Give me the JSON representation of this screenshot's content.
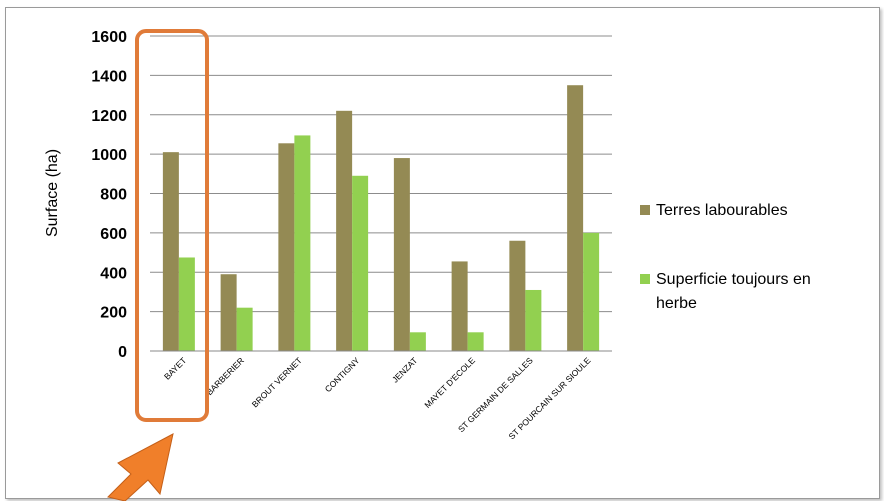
{
  "chart_data": {
    "type": "bar",
    "ylabel": "Surface (ha)",
    "xlabel": "",
    "ylim": [
      0,
      1600
    ],
    "yticks": [
      "0",
      "200",
      "400",
      "600",
      "800",
      "1000",
      "1200",
      "1400",
      "1600"
    ],
    "grid": true,
    "legend_position": "right",
    "categories": [
      "BAYET",
      "BARBERIER",
      "BROUT VERNET",
      "CONTIGNY",
      "JENZAT",
      "MAYET D'ECOLE",
      "ST GERMAIN DE SALLES",
      "ST POURCAIN SUR SIOULE"
    ],
    "series": [
      {
        "name": "Terres labourables",
        "color": "#948a54",
        "values": [
          1010,
          390,
          1055,
          1220,
          980,
          455,
          560,
          1350
        ]
      },
      {
        "name": "Superficie toujours en herbe",
        "color": "#92d050",
        "values": [
          475,
          220,
          1095,
          890,
          95,
          95,
          310,
          600
        ]
      }
    ],
    "legend_lines": [
      [
        "Terres labourables"
      ],
      [
        "Superficie toujours en",
        "herbe"
      ]
    ],
    "highlight": {
      "category": "BAYET",
      "box_color": "#e07b39",
      "arrow_color": "#f07f2a"
    }
  }
}
